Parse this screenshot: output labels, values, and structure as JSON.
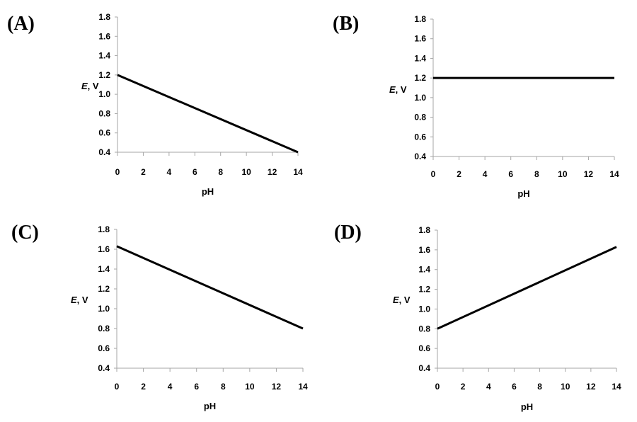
{
  "chart_data": [
    {
      "type": "line",
      "panel_label": "(A)",
      "xlabel": "pH",
      "ylabel_italic": "E",
      "ylabel_rest": ", V",
      "xlim": [
        0,
        14
      ],
      "ylim": [
        0.4,
        1.8
      ],
      "x_ticks": [
        "0",
        "2",
        "4",
        "6",
        "8",
        "10",
        "12",
        "14"
      ],
      "y_ticks": [
        "0.4",
        "0.6",
        "0.8",
        "1.0",
        "1.2",
        "1.4",
        "1.6",
        "1.8"
      ],
      "grid": false,
      "series": [
        {
          "x": [
            0,
            14
          ],
          "y": [
            1.2,
            0.4
          ]
        }
      ]
    },
    {
      "type": "line",
      "panel_label": "(B)",
      "xlabel": "pH",
      "ylabel_italic": "E",
      "ylabel_rest": ", V",
      "xlim": [
        0,
        14
      ],
      "ylim": [
        0.4,
        1.8
      ],
      "x_ticks": [
        "0",
        "2",
        "4",
        "6",
        "8",
        "10",
        "12",
        "14"
      ],
      "y_ticks": [
        "0.4",
        "0.6",
        "0.8",
        "1.0",
        "1.2",
        "1.4",
        "1.6",
        "1.8"
      ],
      "grid": false,
      "series": [
        {
          "x": [
            0,
            14
          ],
          "y": [
            1.2,
            1.2
          ]
        }
      ]
    },
    {
      "type": "line",
      "panel_label": "(C)",
      "xlabel": "pH",
      "ylabel_italic": "E",
      "ylabel_rest": ", V",
      "xlim": [
        0,
        14
      ],
      "ylim": [
        0.4,
        1.8
      ],
      "x_ticks": [
        "0",
        "2",
        "4",
        "6",
        "8",
        "10",
        "12",
        "14"
      ],
      "y_ticks": [
        "0.4",
        "0.6",
        "0.8",
        "1.0",
        "1.2",
        "1.4",
        "1.6",
        "1.8"
      ],
      "grid": false,
      "series": [
        {
          "x": [
            0,
            14
          ],
          "y": [
            1.63,
            0.8
          ]
        }
      ]
    },
    {
      "type": "line",
      "panel_label": "(D)",
      "xlabel": "pH",
      "ylabel_italic": "E",
      "ylabel_rest": ", V",
      "xlim": [
        0,
        14
      ],
      "ylim": [
        0.4,
        1.8
      ],
      "x_ticks": [
        "0",
        "2",
        "4",
        "6",
        "8",
        "10",
        "12",
        "14"
      ],
      "y_ticks": [
        "0.4",
        "0.6",
        "0.8",
        "1.0",
        "1.2",
        "1.4",
        "1.6",
        "1.8"
      ],
      "grid": false,
      "series": [
        {
          "x": [
            0,
            14
          ],
          "y": [
            0.8,
            1.63
          ]
        }
      ]
    }
  ]
}
